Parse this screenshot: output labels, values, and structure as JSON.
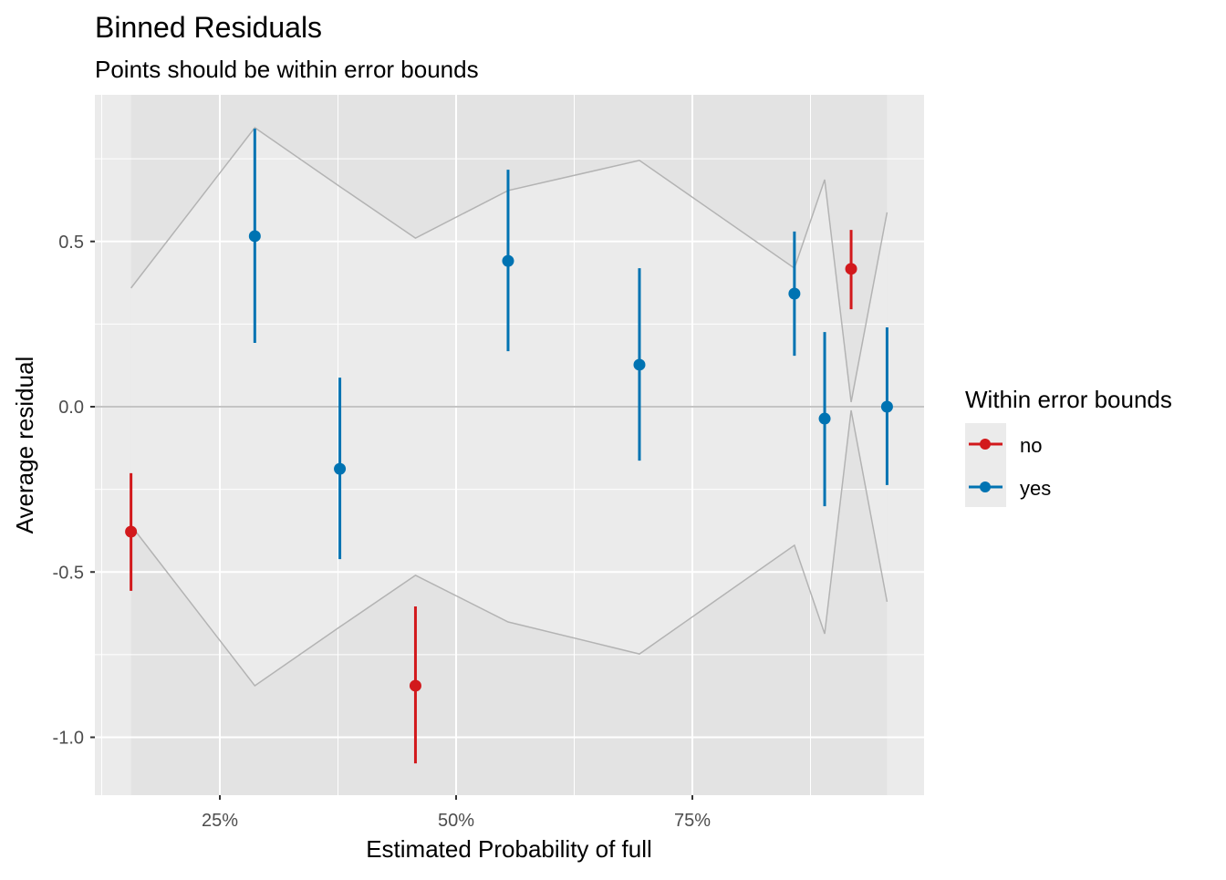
{
  "chart_data": {
    "type": "scatter",
    "title": "Binned Residuals",
    "subtitle": "Points should be within error bounds",
    "xlabel": "Estimated Probability of full",
    "ylabel": "Average residual",
    "xlim": [
      12,
      100
    ],
    "ylim": [
      -1.17,
      0.94
    ],
    "x_ticks": [
      {
        "value": 25,
        "label": "25%"
      },
      {
        "value": 50,
        "label": "50%"
      },
      {
        "value": 75,
        "label": "75%"
      }
    ],
    "y_ticks": [
      {
        "value": 0.5,
        "label": "0.5"
      },
      {
        "value": 0,
        "label": "0.0"
      },
      {
        "value": -0.5,
        "label": "-0.5"
      },
      {
        "value": -1,
        "label": "-1.0"
      }
    ],
    "legend": {
      "title": "Within error bounds",
      "position": "right",
      "entries": [
        {
          "label": "no",
          "color": "#D2191C"
        },
        {
          "label": "yes",
          "color": "#0073B2"
        }
      ]
    },
    "points": [
      {
        "x": 15.6,
        "y": -0.378,
        "ymin": -0.557,
        "ymax": -0.201,
        "group": "no"
      },
      {
        "x": 28.7,
        "y": 0.516,
        "ymin": 0.193,
        "ymax": 0.841,
        "group": "yes"
      },
      {
        "x": 37.7,
        "y": -0.188,
        "ymin": -0.461,
        "ymax": 0.088,
        "group": "yes"
      },
      {
        "x": 45.7,
        "y": -0.844,
        "ymin": -1.079,
        "ymax": -0.604,
        "group": "no"
      },
      {
        "x": 55.5,
        "y": 0.441,
        "ymin": 0.168,
        "ymax": 0.717,
        "group": "yes"
      },
      {
        "x": 69.4,
        "y": 0.127,
        "ymin": -0.163,
        "ymax": 0.419,
        "group": "yes"
      },
      {
        "x": 85.8,
        "y": 0.342,
        "ymin": 0.154,
        "ymax": 0.53,
        "group": "yes"
      },
      {
        "x": 89.0,
        "y": -0.036,
        "ymin": -0.301,
        "ymax": 0.226,
        "group": "yes"
      },
      {
        "x": 91.8,
        "y": 0.417,
        "ymin": 0.295,
        "ymax": 0.535,
        "group": "no"
      },
      {
        "x": 95.6,
        "y": 0.0,
        "ymin": -0.237,
        "ymax": 0.24,
        "group": "yes"
      }
    ],
    "bounds": {
      "x": [
        15.6,
        28.7,
        37.7,
        45.7,
        55.5,
        69.4,
        85.8,
        89.0,
        91.8,
        95.6
      ],
      "upper": [
        0.359,
        0.844,
        0.666,
        0.51,
        0.654,
        0.745,
        0.419,
        0.687,
        0.014,
        0.588
      ],
      "lower": [
        -0.359,
        -0.844,
        -0.666,
        -0.51,
        -0.651,
        -0.748,
        -0.419,
        -0.687,
        -0.011,
        -0.59
      ]
    },
    "colors": {
      "no": "#D2191C",
      "yes": "#0073B2",
      "bound": "#B3B3B3",
      "panel": "#EBEBEB",
      "ribbon": "#E3E3E3"
    }
  }
}
